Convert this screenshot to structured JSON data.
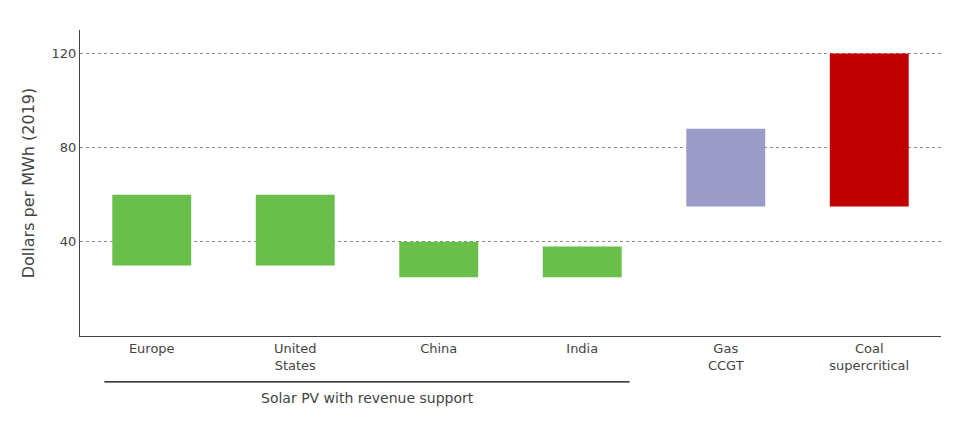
{
  "chart_data": {
    "type": "bar",
    "categories": [
      "Europe",
      "United\nStates",
      "China",
      "India",
      "Gas\nCCGT",
      "Coal\nsupercritical"
    ],
    "base": [
      30,
      30,
      25,
      25,
      55,
      55
    ],
    "values": [
      30,
      30,
      15,
      13,
      33,
      65
    ],
    "colors": [
      "#6abf4b",
      "#6abf4b",
      "#6abf4b",
      "#6abf4b",
      "#9b9bc8",
      "#c00000"
    ],
    "ylabel": "Dollars per MWh (2019)",
    "ylim": [
      0,
      130
    ],
    "yticks": [
      40,
      80,
      120
    ],
    "grid": true,
    "annotations": [
      {
        "text": "Solar PV with revenue support",
        "from": "Europe",
        "to": "India"
      }
    ]
  }
}
